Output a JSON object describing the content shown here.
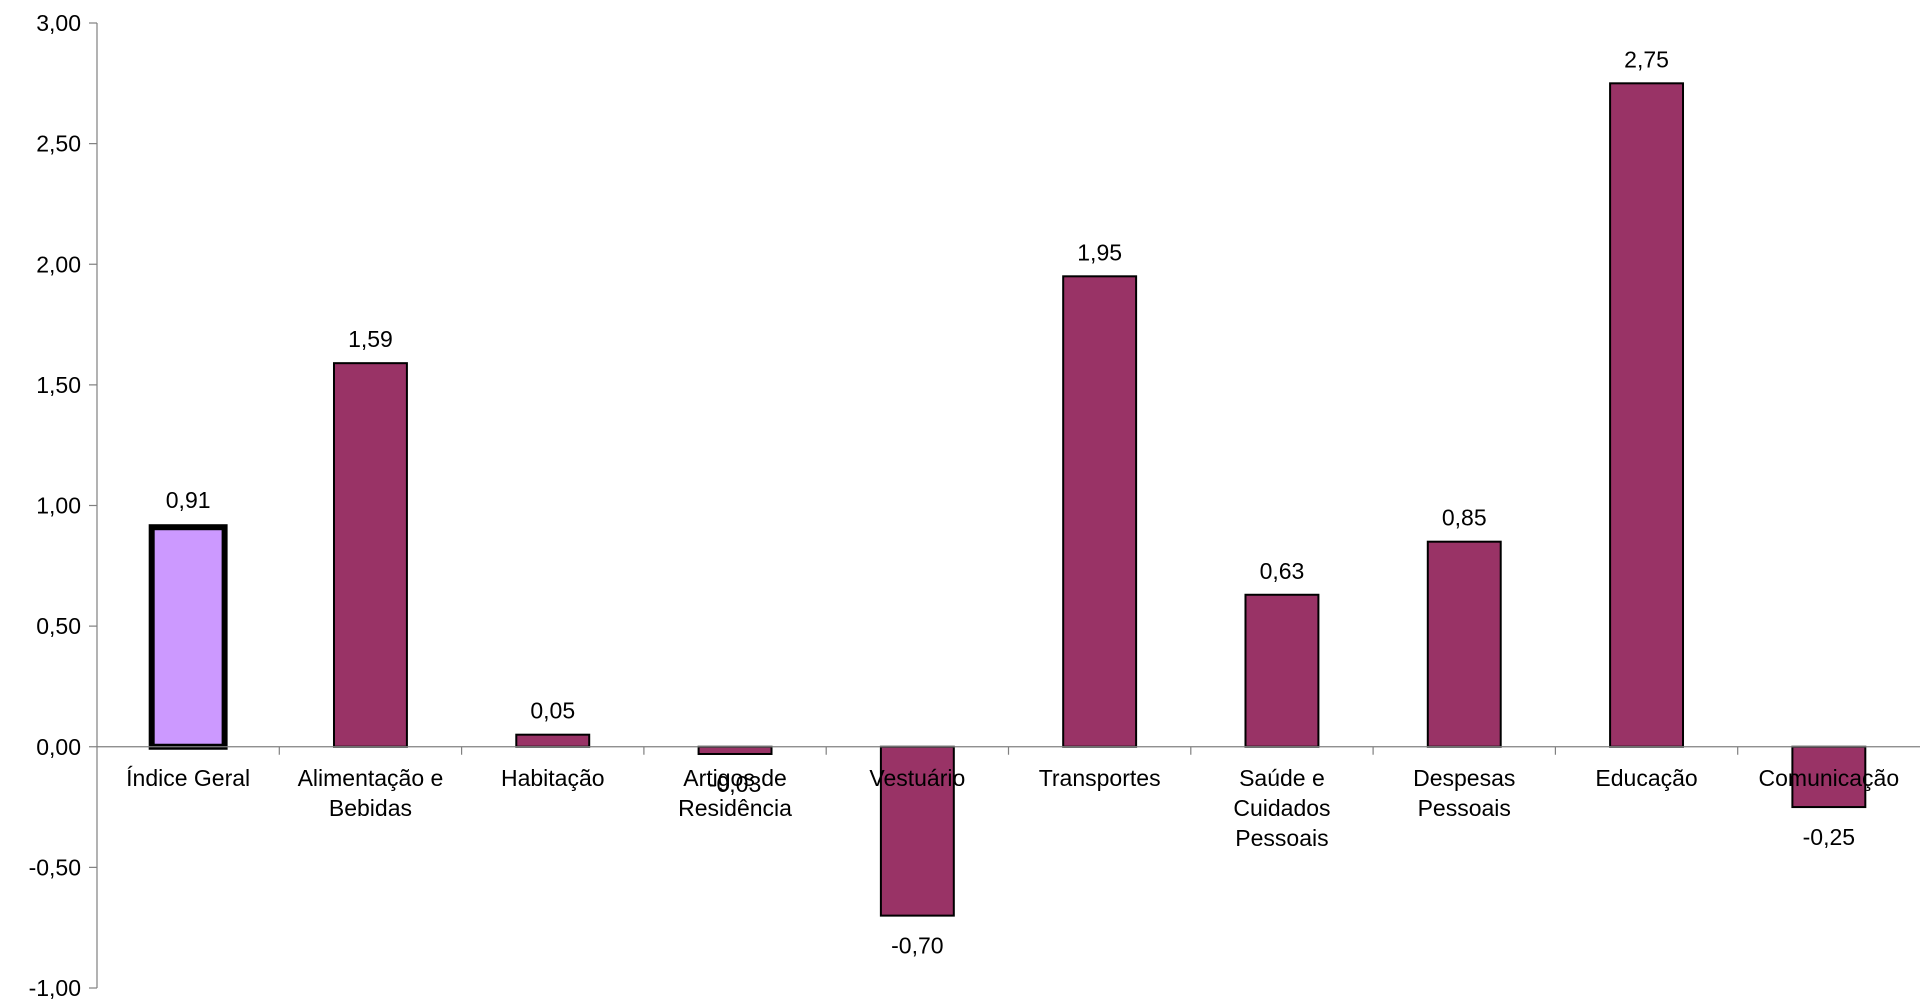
{
  "chart_data": {
    "type": "bar",
    "categories": [
      [
        "Índice Geral"
      ],
      [
        "Alimentação e",
        "Bebidas"
      ],
      [
        "Habitação"
      ],
      [
        "Artigos de",
        "Residência"
      ],
      [
        "Vestuário"
      ],
      [
        "Transportes"
      ],
      [
        "Saúde e",
        "Cuidados",
        "Pessoais"
      ],
      [
        "Despesas",
        "Pessoais"
      ],
      [
        "Educação"
      ],
      [
        "Comunicação"
      ]
    ],
    "values": [
      0.91,
      1.59,
      0.05,
      -0.03,
      -0.7,
      1.95,
      0.63,
      0.85,
      2.75,
      -0.25
    ],
    "value_labels": [
      "0,91",
      "1,59",
      "0,05",
      "-0,03",
      "-0,70",
      "1,95",
      "0,63",
      "0,85",
      "2,75",
      "-0,25"
    ],
    "highlight_index": 0,
    "ylim": [
      -1.0,
      3.0
    ],
    "yticks": [
      -1.0,
      -0.5,
      0.0,
      0.5,
      1.0,
      1.5,
      2.0,
      2.5,
      3.0
    ],
    "ytick_labels": [
      "-1,00",
      "-0,50",
      "0,00",
      "0,50",
      "1,00",
      "1,50",
      "2,00",
      "2,50",
      "3,00"
    ],
    "title": "",
    "xlabel": "",
    "ylabel": "",
    "grid": false,
    "colors": {
      "bar": "#993366",
      "highlight_bar": "#CC99FF",
      "bar_edge": "#000000",
      "axis": "#808080"
    }
  }
}
